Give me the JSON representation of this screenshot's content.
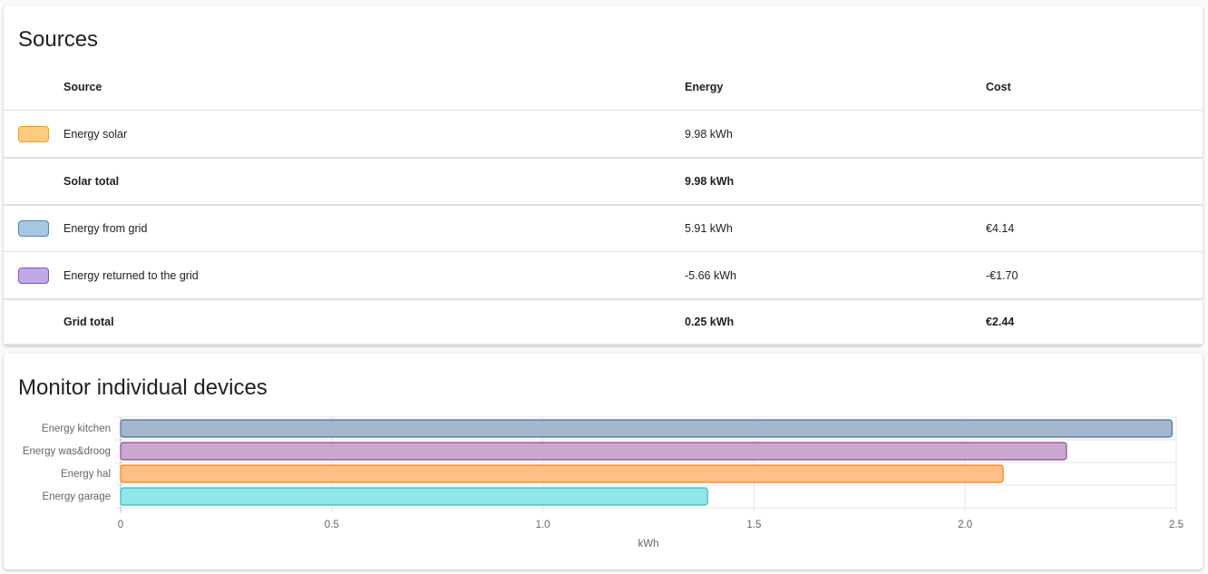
{
  "sources": {
    "title": "Sources",
    "headers": {
      "source": "Source",
      "energy": "Energy",
      "cost": "Cost"
    },
    "rows": [
      {
        "label": "Energy solar",
        "energy": "9.98 kWh",
        "cost": "",
        "color": "#ffcc80",
        "border": "#ff9800"
      },
      {
        "label": "Solar total",
        "energy": "9.98 kWh",
        "cost": "",
        "total": true
      },
      {
        "label": "Energy from grid",
        "energy": "5.91 kWh",
        "cost": "€4.14",
        "color": "#a5c8e1",
        "border": "#4a86b8"
      },
      {
        "label": "Energy returned to the grid",
        "energy": "-5.66 kWh",
        "cost": "-€1.70",
        "color": "#c0a9e4",
        "border": "#8355c9"
      },
      {
        "label": "Grid total",
        "energy": "0.25 kWh",
        "cost": "€2.44",
        "total": true
      }
    ]
  },
  "devices": {
    "title": "Monitor individual devices"
  },
  "chart_data": {
    "type": "bar",
    "orientation": "horizontal",
    "categories": [
      "Energy kitchen",
      "Energy was&droog",
      "Energy hal",
      "Energy garage"
    ],
    "values": [
      2.49,
      2.24,
      2.09,
      1.39
    ],
    "colors": [
      {
        "fill": "#a3b8cf",
        "stroke": "#4d6f96"
      },
      {
        "fill": "#cba8cf",
        "stroke": "#8e4a98"
      },
      {
        "fill": "#ffbf85",
        "stroke": "#ff7f0e"
      },
      {
        "fill": "#90e6e9",
        "stroke": "#2bbcc4"
      }
    ],
    "xlabel": "kWh",
    "xlim": [
      0,
      2.5
    ],
    "xticks": [
      "0",
      "0.5",
      "1.0",
      "1.5",
      "2.0",
      "2.5"
    ],
    "grid": true
  }
}
